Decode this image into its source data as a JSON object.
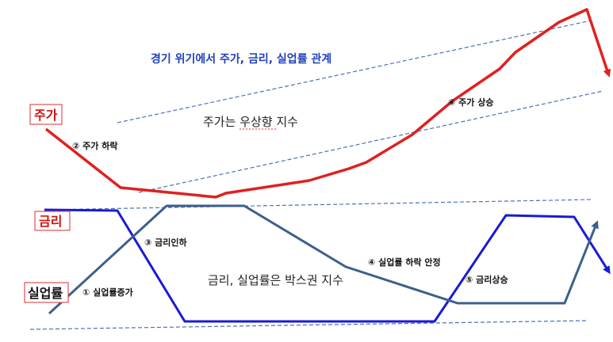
{
  "title": "경기 위기에서 주가, 금리, 실업률 관계",
  "labels": {
    "stock": "주가",
    "rate": "금리",
    "unemployment": "실업률"
  },
  "notes": {
    "stock_trend": "주가는 우상향 지수",
    "box_trend": "금리, 실업률은 박스권 지수"
  },
  "steps": {
    "s1": "① 실업률증가",
    "s2": "② 주가 하락",
    "s3": "③ 금리인하",
    "s4": "④ 실업률 하락 안정",
    "s5": "⑤ 금리상승",
    "s6": "⑥ 주가 상승"
  },
  "colors": {
    "stock": "#e02020",
    "rate": "#1a1ad6",
    "unemployment": "#3c5f8c",
    "trend": "#4a72b8",
    "title": "#1f3fbf",
    "label_border": "#e05050"
  }
}
